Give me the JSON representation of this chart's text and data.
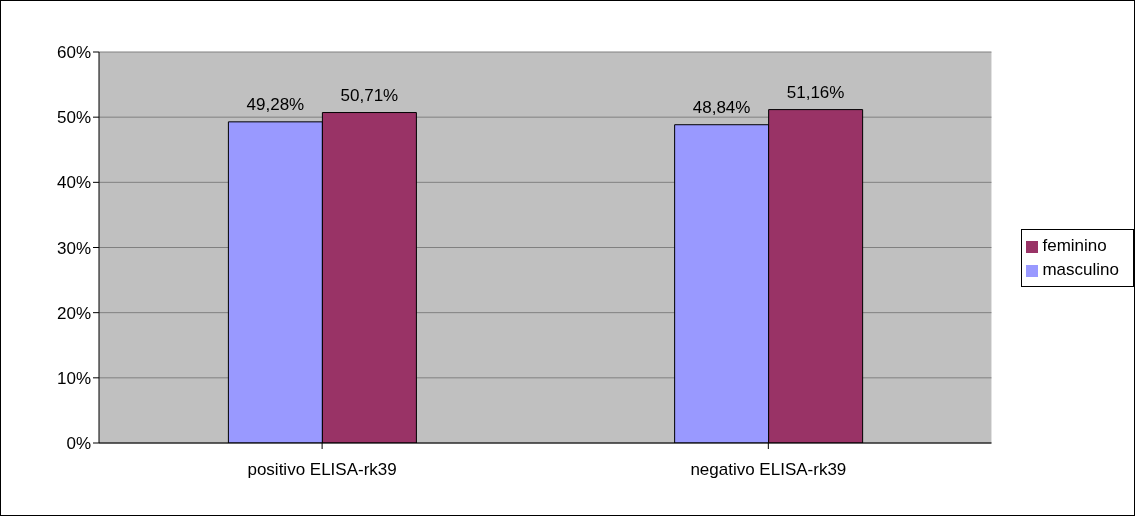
{
  "chart_data": {
    "type": "bar",
    "categories": [
      "positivo ELISA-rk39",
      "negativo ELISA-rk39"
    ],
    "series": [
      {
        "name": "masculino",
        "color": "#9999ff",
        "values": [
          49.28,
          48.84
        ],
        "value_labels": [
          "49,28%",
          "48,84%"
        ]
      },
      {
        "name": "feminino",
        "color": "#993366",
        "values": [
          50.71,
          51.16
        ],
        "value_labels": [
          "50,71%",
          "51,16%"
        ]
      }
    ],
    "ylim": [
      0,
      60
    ],
    "yticks": [
      {
        "value": 0,
        "label": "0%"
      },
      {
        "value": 10,
        "label": "10%"
      },
      {
        "value": 20,
        "label": "20%"
      },
      {
        "value": 30,
        "label": "30%"
      },
      {
        "value": 40,
        "label": "40%"
      },
      {
        "value": 50,
        "label": "50%"
      },
      {
        "value": 60,
        "label": "60%"
      }
    ],
    "grid": "y",
    "legend": "right"
  }
}
